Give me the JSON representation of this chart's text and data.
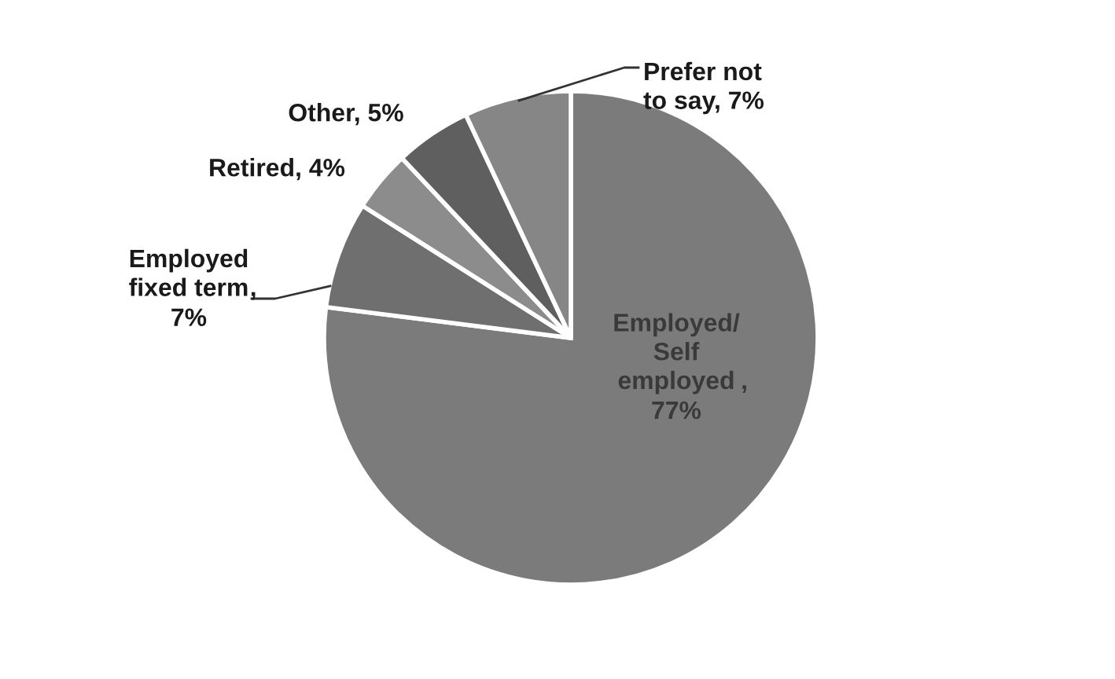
{
  "chart_data": {
    "type": "pie",
    "categories": [
      "Employed/ Self employed",
      "Employed fixed term",
      "Retired",
      "Other",
      "Prefer not to say"
    ],
    "values": [
      77,
      7,
      4,
      5,
      7
    ],
    "colors": [
      "#7b7b7b",
      "#6f6f6f",
      "#8c8c8c",
      "#5f5f5f",
      "#868686"
    ],
    "value_labels": [
      ", 77%",
      ", 7%",
      ", 4%",
      ", 5%",
      ", 7%"
    ],
    "legend": false
  }
}
